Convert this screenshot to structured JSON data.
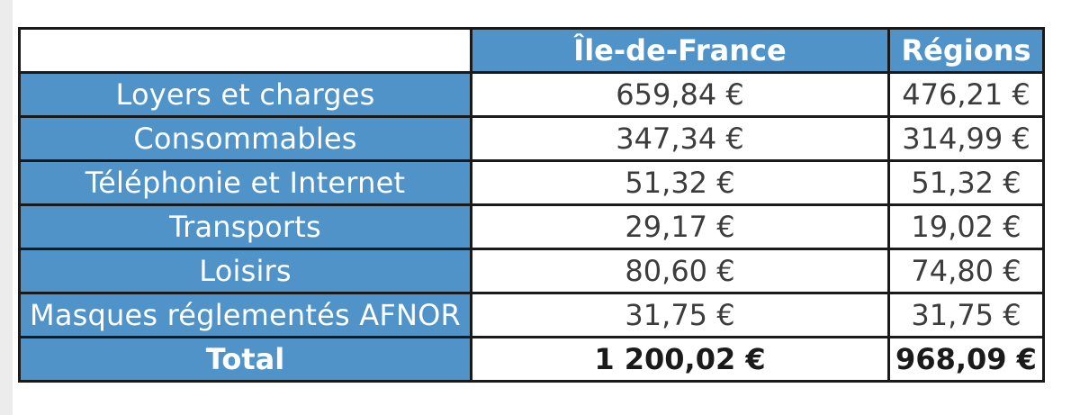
{
  "table": {
    "headers": {
      "ile_de_france": "Île-de-France",
      "regions": "Régions"
    },
    "rows": [
      {
        "label": "Loyers et charges",
        "ile_de_france": "659,84 €",
        "regions": "476,21 €"
      },
      {
        "label": "Consommables",
        "ile_de_france": "347,34 €",
        "regions": "314,99 €"
      },
      {
        "label": "Téléphonie et Internet",
        "ile_de_france": "51,32 €",
        "regions": "51,32 €"
      },
      {
        "label": "Transports",
        "ile_de_france": "29,17 €",
        "regions": "19,02 €"
      },
      {
        "label": "Loisirs",
        "ile_de_france": "80,60 €",
        "regions": "74,80 €"
      },
      {
        "label": "Masques réglementés AFNOR",
        "ile_de_france": "31,75 €",
        "regions": "31,75 €"
      }
    ],
    "total": {
      "label": "Total",
      "ile_de_france": "1 200,02 €",
      "regions": "968,09 €"
    }
  },
  "colors": {
    "header_blue": "#4f93c8",
    "border": "#1a1a1a",
    "value_text": "#3c3c3c"
  }
}
